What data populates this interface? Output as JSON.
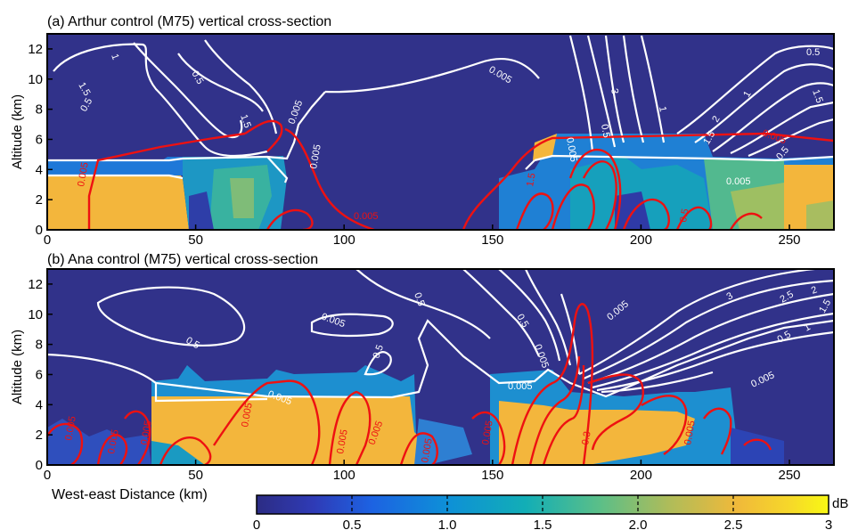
{
  "chart_data": [
    {
      "type": "heatmap",
      "title": "(a) Arthur control (M75) vertical cross-section",
      "xlabel": "",
      "ylabel": "Altitude (km)",
      "xlim": [
        0,
        265
      ],
      "ylim": [
        0,
        13
      ],
      "xticks": [
        "0",
        "50",
        "100",
        "150",
        "200",
        "250"
      ],
      "yticks": [
        "0",
        "2",
        "4",
        "6",
        "8",
        "10",
        "12"
      ],
      "fill_dB_approx": [
        {
          "x": [
            0,
            40
          ],
          "y": [
            0,
            3.5
          ],
          "value": 2.6
        },
        {
          "x": [
            40,
            90
          ],
          "y": [
            0,
            4.4
          ],
          "value": 1.3
        },
        {
          "x": [
            150,
            215
          ],
          "y": [
            0,
            4.5
          ],
          "value": 1.1
        },
        {
          "x": [
            215,
            240
          ],
          "y": [
            0,
            4.5
          ],
          "value": 1.8
        },
        {
          "x": [
            240,
            265
          ],
          "y": [
            0,
            3.6
          ],
          "value": 2.6
        }
      ],
      "white_contour_labels": [
        "1.5",
        "1",
        "0.5",
        "0.5",
        "1.5",
        "0.005",
        "0.005",
        "0.005",
        "0.005",
        "0.5",
        "1",
        "1.5",
        "0.5",
        "2",
        "1.5",
        "1",
        "3",
        "0.5",
        "0.005"
      ],
      "red_contour_labels": [
        "0.005",
        "0.005",
        "0.005",
        "1.5",
        "0.5"
      ]
    },
    {
      "type": "heatmap",
      "title": "(b) Ana control (M75) vertical cross-section",
      "xlabel": "West-east Distance (km)",
      "ylabel": "Altitude (km)",
      "xlim": [
        0,
        265
      ],
      "ylim": [
        0,
        13
      ],
      "xticks": [
        "0",
        "50",
        "100",
        "150",
        "200",
        "250"
      ],
      "yticks": [
        "0",
        "2",
        "4",
        "6",
        "8",
        "10",
        "12"
      ],
      "fill_dB_approx": [
        {
          "x": [
            35,
            140
          ],
          "y": [
            0,
            5.5
          ],
          "value": 2.6
        },
        {
          "x": [
            150,
            240
          ],
          "y": [
            0,
            5.0
          ],
          "value": 2.3
        },
        {
          "x": [
            0,
            35
          ],
          "y": [
            0,
            2
          ],
          "value": 0.4
        }
      ],
      "white_contour_labels": [
        "0.5",
        "0.005",
        "0.5",
        "0.5",
        "0.005",
        "0.005",
        "0.5",
        "0.005",
        "0.005",
        "3",
        "2.5",
        "2",
        "1.5",
        "1",
        "0.5",
        "0.005"
      ],
      "red_contour_labels": [
        "0.005",
        "0.005",
        "0.005",
        "0.005",
        "0.005",
        "0.005",
        "0.005",
        "0.005",
        "0.005",
        "0.3"
      ]
    }
  ],
  "colorbar": {
    "unit": "dB",
    "min": 0,
    "max": 3,
    "ticks": [
      "0",
      "0.5",
      "1.0",
      "1.5",
      "2.0",
      "2.5",
      "3"
    ]
  },
  "colors": {
    "background": "#31328a",
    "contour_white": "#ffffff",
    "contour_red": "#ee1111"
  }
}
